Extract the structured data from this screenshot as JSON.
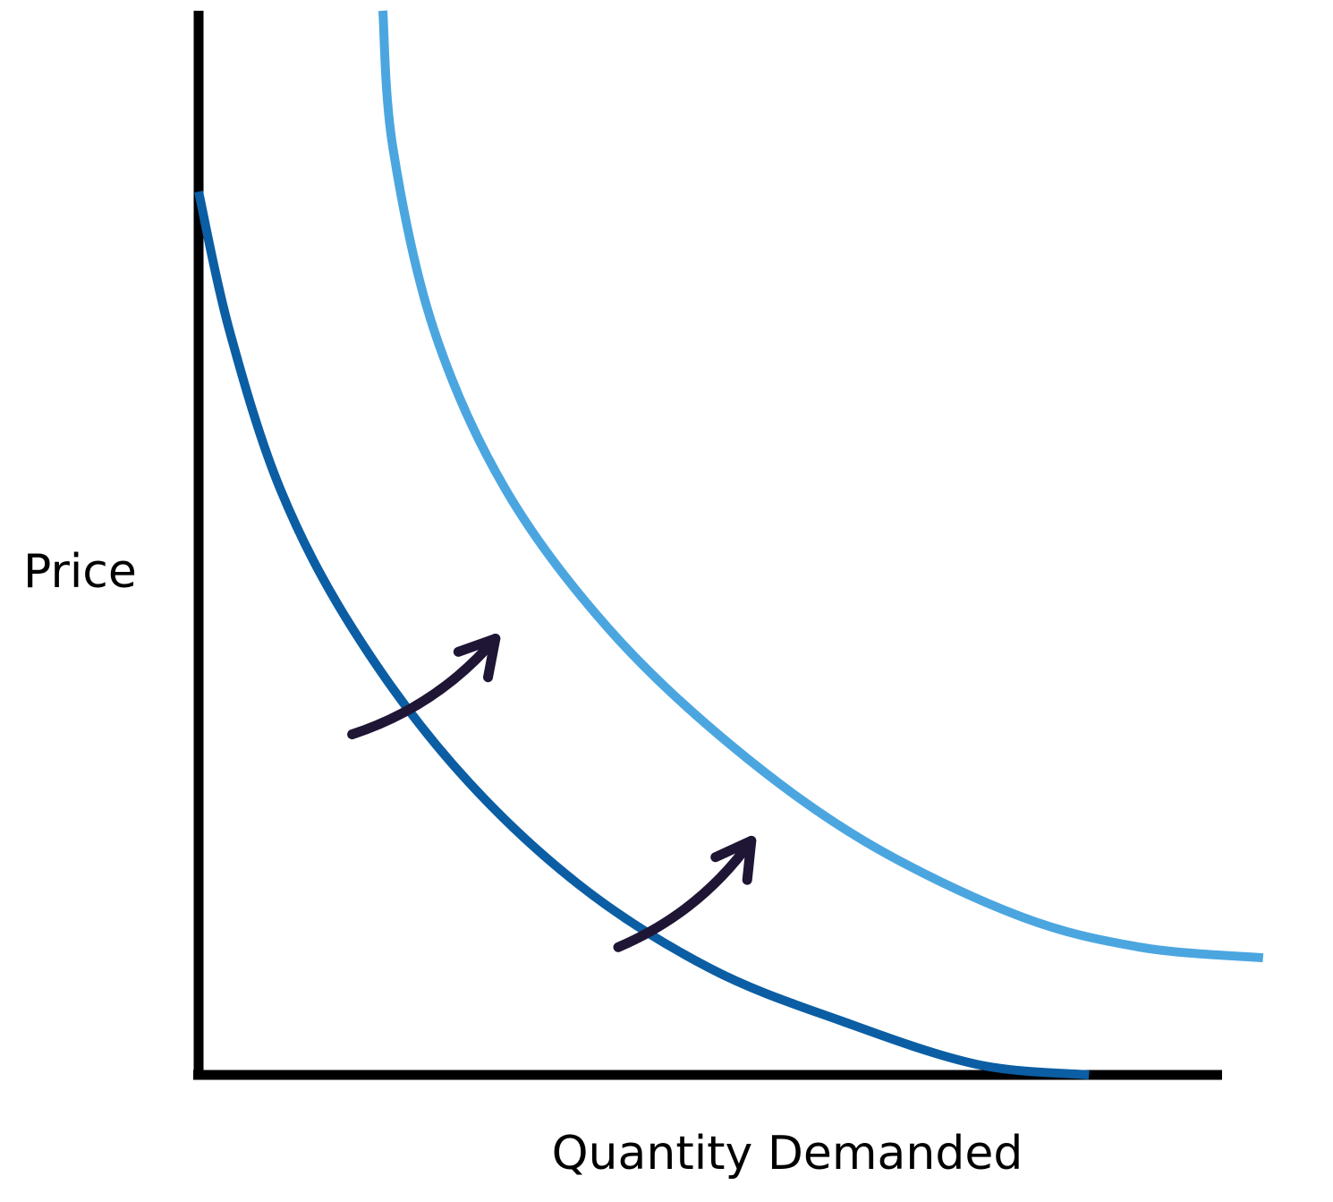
{
  "chart_data": {
    "type": "line",
    "title": "",
    "xlabel": "Quantity Demanded",
    "ylabel": "Price",
    "xlim": [
      0,
      100
    ],
    "ylim": [
      0,
      100
    ],
    "grid": false,
    "legend": "none",
    "tick_labels": false,
    "series": [
      {
        "color": "#0b5ea3",
        "x": [
          0,
          3,
          8,
          15,
          25,
          37,
          50,
          63,
          76,
          87
        ],
        "y": [
          83,
          70,
          55,
          42,
          29,
          18,
          10,
          5,
          1,
          0
        ]
      },
      {
        "color": "#4ba6e0",
        "x": [
          18,
          19,
          23,
          30,
          40,
          52,
          65,
          80,
          92,
          104
        ],
        "y": [
          100,
          87,
          70,
          55,
          42,
          31,
          22,
          15,
          12,
          11
        ]
      }
    ],
    "annotations": [
      {
        "kind": "arrow",
        "from": [
          15,
          32
        ],
        "to": [
          29,
          41
        ]
      },
      {
        "kind": "arrow",
        "from": [
          41,
          12
        ],
        "to": [
          54,
          22
        ]
      }
    ],
    "colors": {
      "axis": "#000000",
      "arrow": "#1f1535"
    }
  }
}
